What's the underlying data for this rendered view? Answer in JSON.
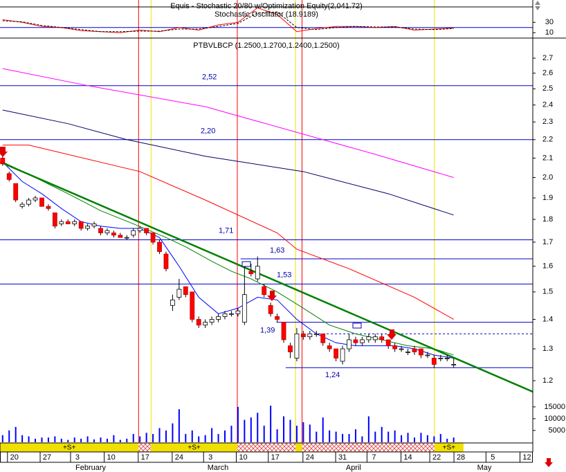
{
  "chart_data": {
    "type": "candlestick",
    "indicator_title": "Equis - Stochastic 20/80 w/Optimization Equity(2,041.72)",
    "indicator_subtitle": "Stochastic Oscillator (18.9189)",
    "title": "PTBVLBCP (1.2500,1.2700,1.2400,1.2500)",
    "xlim": [
      -0.4,
      81.1
    ],
    "xticks": [
      {
        "value": 1.8,
        "label": "20"
      },
      {
        "value": 6.8,
        "label": "27"
      },
      {
        "value": 11.45,
        "label": "3"
      },
      {
        "value": 16.6,
        "label": "10"
      },
      {
        "value": 21.8,
        "label": "17"
      },
      {
        "value": 27,
        "label": "24"
      },
      {
        "value": 31.8,
        "label": "3"
      },
      {
        "value": 36.8,
        "label": "10"
      },
      {
        "value": 41.7,
        "label": "17"
      },
      {
        "value": 47,
        "label": "24"
      },
      {
        "value": 52,
        "label": "31"
      },
      {
        "value": 56.8,
        "label": "7"
      },
      {
        "value": 62,
        "label": "14"
      },
      {
        "value": 66.4,
        "label": "22"
      },
      {
        "value": 70.1,
        "label": "28"
      },
      {
        "value": 75,
        "label": "5"
      },
      {
        "value": 80.2,
        "label": "12"
      }
    ],
    "month_labels": [
      {
        "value": 13.47,
        "label": "February"
      },
      {
        "value": 32.94,
        "label": "March"
      },
      {
        "value": 53.68,
        "label": "April"
      },
      {
        "value": 73.69,
        "label": "May"
      }
    ],
    "ylim": [
      1.145,
      2.84
    ],
    "log_scale": true,
    "yticks": [
      2.7,
      2.6,
      2.5,
      2.4,
      2.3,
      2.2,
      2.1,
      {
        "value": 2,
        "label": "2.0"
      },
      1.9,
      1.8,
      1.7,
      1.6,
      1.5,
      1.4,
      1.3,
      1.2
    ],
    "up_color": "#ffffff",
    "down_color": "#ff0000",
    "open": [
      2.1,
      2.02,
      1.97,
      1.86,
      1.87,
      1.89,
      1.9,
      1.86,
      1.83,
      1.78,
      1.79,
      1.78,
      1.79,
      1.76,
      1.77,
      1.76,
      1.74,
      1.74,
      1.73,
      1.72,
      1.73,
      1.75,
      1.76,
      1.74,
      1.7,
      1.65,
      1.45,
      1.48,
      1.52,
      1.5,
      1.4,
      1.38,
      1.39,
      1.4,
      1.41,
      1.42,
      1.42,
      1.39,
      1.58,
      1.55,
      1.52,
      1.45,
      1.41,
      1.39,
      1.31,
      1.27,
      1.35,
      1.34,
      1.35,
      1.35,
      1.31,
      1.3,
      1.26,
      1.3,
      1.33,
      1.32,
      1.33,
      1.33,
      1.34,
      1.33,
      1.31,
      1.3,
      1.29,
      1.3,
      1.3,
      1.28,
      1.27,
      1.27,
      1.27,
      1.25
    ],
    "high": [
      2.11,
      2.03,
      1.97,
      1.88,
      1.9,
      1.91,
      1.9,
      1.87,
      1.83,
      1.8,
      1.8,
      1.8,
      1.79,
      1.78,
      1.79,
      1.77,
      1.76,
      1.75,
      1.74,
      1.73,
      1.76,
      1.77,
      1.76,
      1.74,
      1.71,
      1.66,
      1.49,
      1.55,
      1.52,
      1.5,
      1.41,
      1.4,
      1.41,
      1.42,
      1.43,
      1.43,
      1.44,
      1.6,
      1.61,
      1.64,
      1.53,
      1.46,
      1.42,
      1.39,
      1.32,
      1.37,
      1.36,
      1.36,
      1.36,
      1.35,
      1.32,
      1.3,
      1.31,
      1.35,
      1.34,
      1.34,
      1.35,
      1.35,
      1.35,
      1.33,
      1.32,
      1.31,
      1.3,
      1.31,
      1.3,
      1.29,
      1.28,
      1.28,
      1.28,
      1.27
    ],
    "low": [
      2.06,
      1.98,
      1.88,
      1.85,
      1.86,
      1.88,
      1.86,
      1.84,
      1.76,
      1.77,
      1.78,
      1.77,
      1.75,
      1.75,
      1.76,
      1.73,
      1.73,
      1.72,
      1.72,
      1.71,
      1.72,
      1.74,
      1.73,
      1.69,
      1.65,
      1.58,
      1.43,
      1.47,
      1.48,
      1.39,
      1.37,
      1.37,
      1.38,
      1.39,
      1.4,
      1.41,
      1.41,
      1.38,
      1.56,
      1.54,
      1.48,
      1.41,
      1.39,
      1.32,
      1.27,
      1.26,
      1.33,
      1.33,
      1.34,
      1.31,
      1.29,
      1.26,
      1.25,
      1.29,
      1.31,
      1.31,
      1.32,
      1.32,
      1.32,
      1.3,
      1.29,
      1.29,
      1.28,
      1.28,
      1.27,
      1.27,
      1.24,
      1.26,
      1.26,
      1.24
    ],
    "close": [
      2.07,
      1.99,
      1.89,
      1.87,
      1.89,
      1.9,
      1.86,
      1.85,
      1.77,
      1.79,
      1.78,
      1.79,
      1.76,
      1.77,
      1.78,
      1.74,
      1.75,
      1.73,
      1.72,
      1.72,
      1.75,
      1.76,
      1.74,
      1.7,
      1.66,
      1.59,
      1.47,
      1.51,
      1.49,
      1.4,
      1.38,
      1.39,
      1.4,
      1.41,
      1.42,
      1.42,
      1.43,
      1.49,
      1.57,
      1.6,
      1.49,
      1.42,
      1.4,
      1.33,
      1.29,
      1.35,
      1.34,
      1.35,
      1.35,
      1.32,
      1.3,
      1.27,
      1.3,
      1.33,
      1.32,
      1.33,
      1.34,
      1.34,
      1.33,
      1.31,
      1.3,
      1.3,
      1.29,
      1.29,
      1.28,
      1.28,
      1.25,
      1.27,
      1.27,
      1.25
    ],
    "overlays": [
      {
        "color": "#ff00ff",
        "x": [
          0,
          13,
          31,
          47,
          57,
          69
        ],
        "values": [
          2.63,
          2.52,
          2.39,
          2.22,
          2.12,
          2.0
        ]
      },
      {
        "color": "#000066",
        "x": [
          0,
          10,
          19,
          31,
          46,
          59,
          69
        ],
        "values": [
          2.37,
          2.29,
          2.2,
          2.11,
          2.03,
          1.92,
          1.82
        ]
      },
      {
        "color": "#ff0000",
        "x": [
          0,
          4,
          21,
          31,
          42,
          45,
          53,
          63,
          69
        ],
        "values": [
          2.17,
          2.17,
          2.03,
          1.89,
          1.74,
          1.67,
          1.59,
          1.48,
          1.4
        ]
      },
      {
        "color": "#008000",
        "x": [
          0,
          5,
          10,
          15,
          20,
          25,
          28,
          32,
          35,
          38,
          42,
          46,
          50,
          54,
          58,
          62,
          66,
          69
        ],
        "values": [
          2.08,
          2.0,
          1.92,
          1.84,
          1.78,
          1.72,
          1.68,
          1.62,
          1.58,
          1.55,
          1.5,
          1.44,
          1.38,
          1.35,
          1.33,
          1.31,
          1.3,
          1.28
        ]
      },
      {
        "color": "#0000ff",
        "x": [
          0,
          3,
          6,
          9,
          12,
          15,
          18,
          21,
          24,
          27,
          30,
          33,
          36,
          39,
          42,
          45,
          48,
          51,
          54,
          57,
          60,
          63,
          66,
          69
        ],
        "values": [
          2.08,
          1.98,
          1.92,
          1.85,
          1.79,
          1.77,
          1.76,
          1.76,
          1.72,
          1.6,
          1.48,
          1.42,
          1.44,
          1.48,
          1.47,
          1.4,
          1.35,
          1.32,
          1.31,
          1.31,
          1.31,
          1.3,
          1.28,
          1.27
        ]
      }
    ],
    "trendline": {
      "color": "#008000",
      "x": [
        -0.4,
        81.1
      ],
      "values": [
        2.08,
        1.167
      ]
    },
    "levels": [
      {
        "value": 2.52,
        "label": "2,52",
        "from": -0.4
      },
      {
        "value": 2.2,
        "label": "2,20",
        "from": -0.4
      },
      {
        "value": 1.71,
        "label": "1,71",
        "from": -0.4
      },
      {
        "value": 1.63,
        "label": "1,63",
        "from": 36.4
      },
      {
        "value": 1.53,
        "label": "1,53",
        "from": -0.4
      },
      {
        "value": 1.39,
        "label": "1,39",
        "from": 41.9
      },
      {
        "value": 1.24,
        "label": "1,24",
        "from": 43.3
      },
      {
        "value": 1.35,
        "from": 48.3,
        "dashed": true
      }
    ],
    "level_color": "#0000cc",
    "vlines": [
      {
        "x": 20.8,
        "color": "#ff0000"
      },
      {
        "x": 22.7,
        "color": "#f0e000"
      },
      {
        "x": 35.9,
        "color": "#ff0000"
      },
      {
        "x": 44.8,
        "color": "#f0e000"
      },
      {
        "x": 45.8,
        "color": "#ff0000"
      },
      {
        "x": 66.05,
        "color": "#f0e000"
      }
    ],
    "signal_color": "#f0e000",
    "signal_labels": [
      "+S+",
      "+S+",
      "+S+"
    ],
    "stochastic": {
      "ylim": [
        1,
        73
      ],
      "yticks": [
        30,
        10
      ],
      "levels": [
        20
      ],
      "level_color": "#0000cc",
      "series": [
        {
          "color": "#ff0000",
          "x": [
            0,
            3,
            6,
            9,
            12,
            15,
            18,
            21,
            24,
            27,
            30,
            33,
            36,
            39,
            42,
            45,
            48,
            51,
            54,
            57,
            60,
            63,
            66,
            69
          ],
          "values": [
            35,
            30,
            22,
            20,
            14,
            12,
            10,
            15,
            12,
            20,
            15,
            25,
            30,
            58,
            45,
            12,
            18,
            22,
            22,
            20,
            22,
            15,
            17,
            19
          ]
        },
        {
          "color": "#000000",
          "dashed": true,
          "x": [
            0,
            3,
            6,
            9,
            12,
            15,
            18,
            21,
            24,
            27,
            30,
            33,
            36,
            39,
            42,
            45,
            48,
            51,
            54,
            57,
            60,
            63,
            66,
            69
          ],
          "values": [
            33,
            31,
            24,
            20,
            16,
            12,
            12,
            13,
            13,
            17,
            17,
            22,
            28,
            48,
            50,
            20,
            16,
            20,
            22,
            21,
            21,
            17,
            16,
            18
          ]
        }
      ]
    },
    "volume": {
      "ylim": [
        0,
        18200
      ],
      "yticks": [
        15000,
        10000,
        5000
      ],
      "color": "#0000ff",
      "values": [
        3000,
        5000,
        6500,
        3000,
        2500,
        1500,
        2000,
        2000,
        2500,
        1500,
        1000,
        2000,
        1500,
        2500,
        1200,
        2000,
        1500,
        3000,
        1000,
        1500,
        3500,
        2500,
        4000,
        3500,
        6000,
        5000,
        8000,
        14000,
        3500,
        5000,
        2500,
        3000,
        6000,
        3500,
        5000,
        7000,
        15000,
        9500,
        10500,
        12500,
        7000,
        15500,
        5500,
        11000,
        9500,
        7000,
        8500,
        7500,
        4500,
        10500,
        5000,
        4500,
        3500,
        3500,
        5500,
        2500,
        11000,
        4500,
        6500,
        4500,
        5000,
        3000,
        4000,
        2000,
        4000,
        3000,
        2500,
        3500,
        1500,
        2000
      ]
    }
  }
}
